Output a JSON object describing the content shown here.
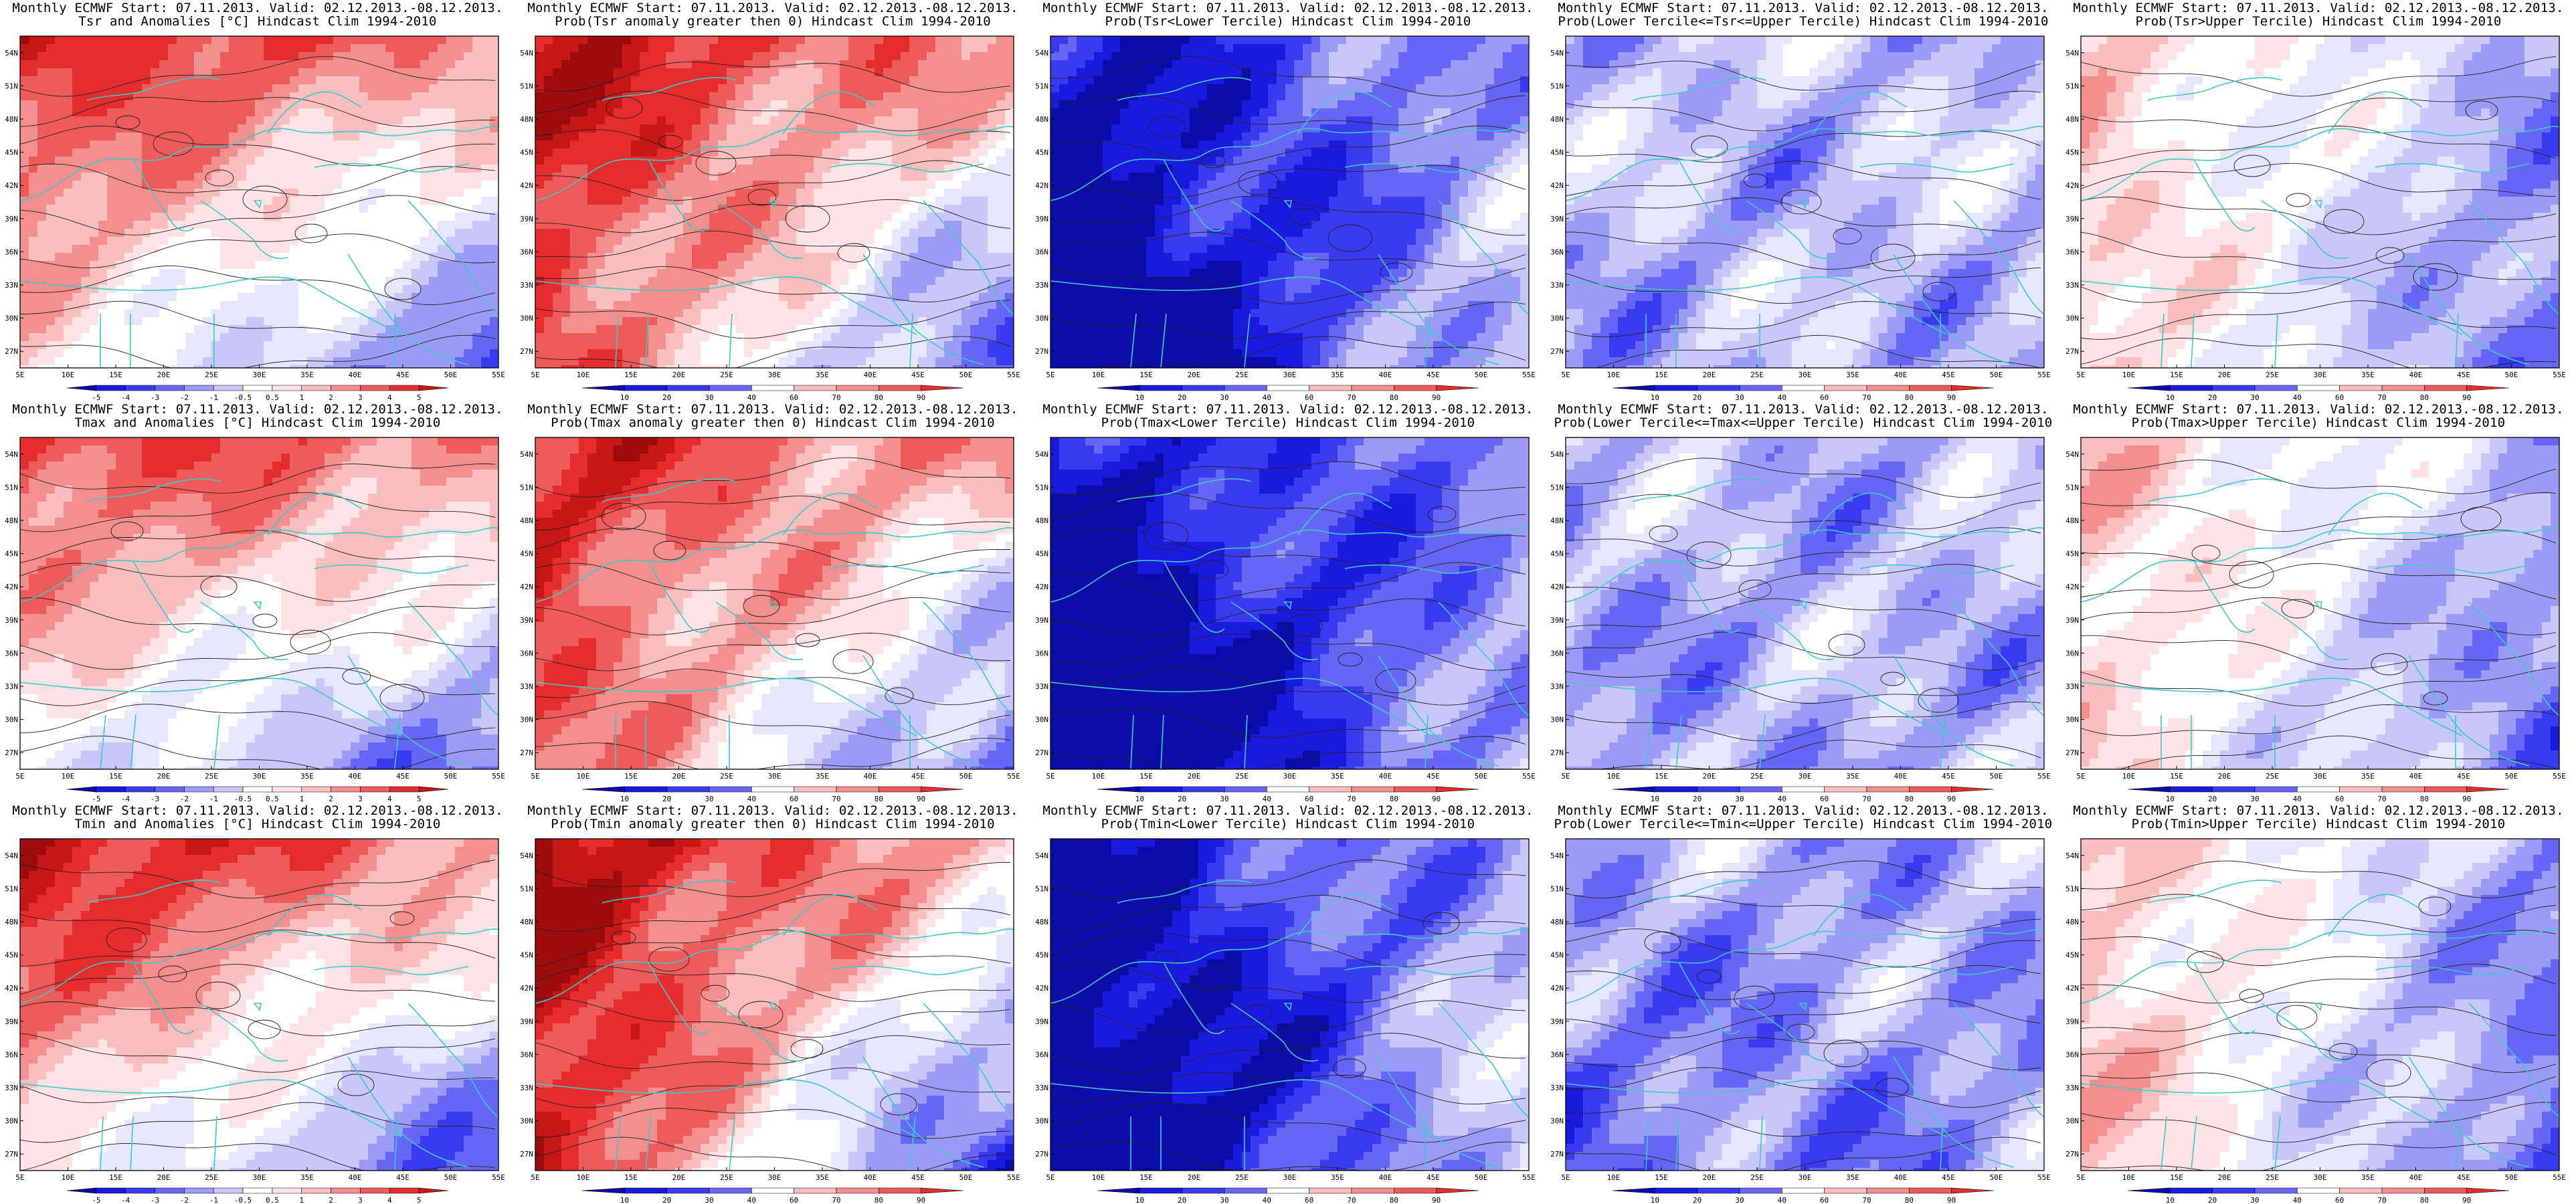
{
  "colors": {
    "blue_scale": [
      "#0c0ca8",
      "#1a1add",
      "#3a3af0",
      "#6767f5",
      "#9c9cf7",
      "#c7c7fa",
      "#e6e6fc"
    ],
    "red_scale": [
      "#fde3e3",
      "#fabebe",
      "#f48f8f",
      "#ee5b5b",
      "#e52d2d",
      "#c71818",
      "#9c0c0c"
    ],
    "coast": "#3ec9c9",
    "contour": "#222222"
  },
  "chart_data": [
    {
      "type": "heatmap",
      "variable": "Tsr",
      "kind": "anom",
      "line1": "Monthly ECMWF Start: 07.11.2013. Valid: 02.12.2013.-08.12.2013.",
      "line2": "Tsr and Anomalies [°C] Hindcast Clim 1994-2010",
      "colorbar_ticks": [
        "-5",
        "-4",
        "-3",
        "-2",
        "-1",
        "-0.5",
        "0.5",
        "1",
        "2",
        "3",
        "4",
        "5"
      ],
      "x_ticks": [
        "5E",
        "10E",
        "15E",
        "20E",
        "25E",
        "30E",
        "35E",
        "40E",
        "45E",
        "50E",
        "55E"
      ],
      "y_ticks": [
        "27N",
        "30N",
        "33N",
        "36N",
        "39N",
        "42N",
        "45N",
        "48N",
        "51N",
        "54N"
      ],
      "xlim": [
        5,
        55
      ],
      "ylim": [
        25.5,
        55.5
      ],
      "pattern": {
        "base": 0.58,
        "w_lat": 0.5,
        "w_lon": -0.18,
        "w_sw": 0.18,
        "w_noise": 0.22,
        "contrast": 1.0,
        "seed": 1
      }
    },
    {
      "type": "heatmap",
      "variable": "Tsr",
      "kind": "prob",
      "line1": "Monthly ECMWF Start: 07.11.2013. Valid: 02.12.2013.-08.12.2013.",
      "line2": "Prob(Tsr anomaly greater then 0) Hindcast Clim 1994-2010",
      "colorbar_ticks": [
        "10",
        "20",
        "30",
        "40",
        "60",
        "70",
        "80",
        "90"
      ],
      "x_ticks": [
        "5E",
        "10E",
        "15E",
        "20E",
        "25E",
        "30E",
        "35E",
        "40E",
        "45E",
        "50E",
        "55E"
      ],
      "y_ticks": [
        "27N",
        "30N",
        "33N",
        "36N",
        "39N",
        "42N",
        "45N",
        "48N",
        "51N",
        "54N"
      ],
      "xlim": [
        5,
        55
      ],
      "ylim": [
        25.5,
        55.5
      ],
      "pattern": {
        "base": 0.62,
        "w_lat": 0.45,
        "w_lon": -0.2,
        "w_sw": 0.35,
        "w_noise": 0.25,
        "contrast": 1.15,
        "seed": 2
      }
    },
    {
      "type": "heatmap",
      "variable": "Tsr",
      "kind": "prob",
      "line1": "Monthly ECMWF Start: 07.11.2013. Valid: 02.12.2013.-08.12.2013.",
      "line2": "Prob(Tsr<Lower Tercile) Hindcast Clim 1994-2010",
      "colorbar_ticks": [
        "10",
        "20",
        "30",
        "40",
        "60",
        "70",
        "80",
        "90"
      ],
      "x_ticks": [
        "5E",
        "10E",
        "15E",
        "20E",
        "25E",
        "30E",
        "35E",
        "40E",
        "45E",
        "50E",
        "55E"
      ],
      "y_ticks": [
        "27N",
        "30N",
        "33N",
        "36N",
        "39N",
        "42N",
        "45N",
        "48N",
        "51N",
        "54N"
      ],
      "xlim": [
        5,
        55
      ],
      "ylim": [
        25.5,
        55.5
      ],
      "pattern": {
        "base": 0.22,
        "w_lat": -0.1,
        "w_lon": 0.2,
        "w_sw": -0.3,
        "w_noise": 0.25,
        "contrast": 1.2,
        "seed": 3
      }
    },
    {
      "type": "heatmap",
      "variable": "Tsr",
      "kind": "prob",
      "line1": "Monthly ECMWF Start: 07.11.2013. Valid: 02.12.2013.-08.12.2013.",
      "line2": "Prob(Lower Tercile<=Tsr<=Upper Tercile) Hindcast Clim 1994-2010",
      "colorbar_ticks": [
        "10",
        "20",
        "30",
        "40",
        "60",
        "70",
        "80",
        "90"
      ],
      "x_ticks": [
        "5E",
        "10E",
        "15E",
        "20E",
        "25E",
        "30E",
        "35E",
        "40E",
        "45E",
        "50E",
        "55E"
      ],
      "y_ticks": [
        "27N",
        "30N",
        "33N",
        "36N",
        "39N",
        "42N",
        "45N",
        "48N",
        "51N",
        "54N"
      ],
      "xlim": [
        5,
        55
      ],
      "ylim": [
        25.5,
        55.5
      ],
      "pattern": {
        "base": 0.36,
        "w_lat": 0.0,
        "w_lon": 0.0,
        "w_sw": -0.05,
        "w_noise": 0.35,
        "contrast": 1.0,
        "seed": 4
      }
    },
    {
      "type": "heatmap",
      "variable": "Tsr",
      "kind": "prob",
      "line1": "Monthly ECMWF Start: 07.11.2013. Valid: 02.12.2013.-08.12.2013.",
      "line2": "Prob(Tsr>Upper Tercile) Hindcast Clim 1994-2010",
      "colorbar_ticks": [
        "10",
        "20",
        "30",
        "40",
        "60",
        "70",
        "80",
        "90"
      ],
      "x_ticks": [
        "5E",
        "10E",
        "15E",
        "20E",
        "25E",
        "30E",
        "35E",
        "40E",
        "45E",
        "50E",
        "55E"
      ],
      "y_ticks": [
        "27N",
        "30N",
        "33N",
        "36N",
        "39N",
        "42N",
        "45N",
        "48N",
        "51N",
        "54N"
      ],
      "xlim": [
        5,
        55
      ],
      "ylim": [
        25.5,
        55.5
      ],
      "pattern": {
        "base": 0.44,
        "w_lat": 0.1,
        "w_lon": -0.3,
        "w_sw": 0.08,
        "w_noise": 0.25,
        "contrast": 1.0,
        "seed": 5
      }
    },
    {
      "type": "heatmap",
      "variable": "Tmax",
      "kind": "anom",
      "line1": "Monthly ECMWF Start: 07.11.2013. Valid: 02.12.2013.-08.12.2013.",
      "line2": "Tmax and Anomalies [°C] Hindcast Clim 1994-2010",
      "colorbar_ticks": [
        "-5",
        "-4",
        "-3",
        "-2",
        "-1",
        "-0.5",
        "0.5",
        "1",
        "2",
        "3",
        "4",
        "5"
      ],
      "x_ticks": [
        "5E",
        "10E",
        "15E",
        "20E",
        "25E",
        "30E",
        "35E",
        "40E",
        "45E",
        "50E",
        "55E"
      ],
      "y_ticks": [
        "27N",
        "30N",
        "33N",
        "36N",
        "39N",
        "42N",
        "45N",
        "48N",
        "51N",
        "54N"
      ],
      "xlim": [
        5,
        55
      ],
      "ylim": [
        25.5,
        55.5
      ],
      "pattern": {
        "base": 0.56,
        "w_lat": 0.5,
        "w_lon": -0.12,
        "w_sw": 0.15,
        "w_noise": 0.22,
        "contrast": 1.0,
        "seed": 6
      }
    },
    {
      "type": "heatmap",
      "variable": "Tmax",
      "kind": "prob",
      "line1": "Monthly ECMWF Start: 07.11.2013. Valid: 02.12.2013.-08.12.2013.",
      "line2": "Prob(Tmax anomaly greater then 0) Hindcast Clim 1994-2010",
      "colorbar_ticks": [
        "10",
        "20",
        "30",
        "40",
        "60",
        "70",
        "80",
        "90"
      ],
      "x_ticks": [
        "5E",
        "10E",
        "15E",
        "20E",
        "25E",
        "30E",
        "35E",
        "40E",
        "45E",
        "50E",
        "55E"
      ],
      "y_ticks": [
        "27N",
        "30N",
        "33N",
        "36N",
        "39N",
        "42N",
        "45N",
        "48N",
        "51N",
        "54N"
      ],
      "xlim": [
        5,
        55
      ],
      "ylim": [
        25.5,
        55.5
      ],
      "pattern": {
        "base": 0.6,
        "w_lat": 0.42,
        "w_lon": -0.18,
        "w_sw": 0.35,
        "w_noise": 0.25,
        "contrast": 1.15,
        "seed": 7
      }
    },
    {
      "type": "heatmap",
      "variable": "Tmax",
      "kind": "prob",
      "line1": "Monthly ECMWF Start: 07.11.2013. Valid: 02.12.2013.-08.12.2013.",
      "line2": "Prob(Tmax<Lower Tercile) Hindcast Clim 1994-2010",
      "colorbar_ticks": [
        "10",
        "20",
        "30",
        "40",
        "60",
        "70",
        "80",
        "90"
      ],
      "x_ticks": [
        "5E",
        "10E",
        "15E",
        "20E",
        "25E",
        "30E",
        "35E",
        "40E",
        "45E",
        "50E",
        "55E"
      ],
      "y_ticks": [
        "27N",
        "30N",
        "33N",
        "36N",
        "39N",
        "42N",
        "45N",
        "48N",
        "51N",
        "54N"
      ],
      "xlim": [
        5,
        55
      ],
      "ylim": [
        25.5,
        55.5
      ],
      "pattern": {
        "base": 0.2,
        "w_lat": -0.08,
        "w_lon": 0.15,
        "w_sw": -0.3,
        "w_noise": 0.25,
        "contrast": 1.2,
        "seed": 8
      }
    },
    {
      "type": "heatmap",
      "variable": "Tmax",
      "kind": "prob",
      "line1": "Monthly ECMWF Start: 07.11.2013. Valid: 02.12.2013.-08.12.2013.",
      "line2": "Prob(Lower Tercile<=Tmax<=Upper Tercile) Hindcast Clim 1994-2010",
      "colorbar_ticks": [
        "10",
        "20",
        "30",
        "40",
        "60",
        "70",
        "80",
        "90"
      ],
      "x_ticks": [
        "5E",
        "10E",
        "15E",
        "20E",
        "25E",
        "30E",
        "35E",
        "40E",
        "45E",
        "50E",
        "55E"
      ],
      "y_ticks": [
        "27N",
        "30N",
        "33N",
        "36N",
        "39N",
        "42N",
        "45N",
        "48N",
        "51N",
        "54N"
      ],
      "xlim": [
        5,
        55
      ],
      "ylim": [
        25.5,
        55.5
      ],
      "pattern": {
        "base": 0.34,
        "w_lat": 0.0,
        "w_lon": 0.0,
        "w_sw": -0.05,
        "w_noise": 0.35,
        "contrast": 1.0,
        "seed": 9
      }
    },
    {
      "type": "heatmap",
      "variable": "Tmax",
      "kind": "prob",
      "line1": "Monthly ECMWF Start: 07.11.2013. Valid: 02.12.2013.-08.12.2013.",
      "line2": "Prob(Tmax>Upper Tercile) Hindcast Clim 1994-2010",
      "colorbar_ticks": [
        "10",
        "20",
        "30",
        "40",
        "60",
        "70",
        "80",
        "90"
      ],
      "x_ticks": [
        "5E",
        "10E",
        "15E",
        "20E",
        "25E",
        "30E",
        "35E",
        "40E",
        "45E",
        "50E",
        "55E"
      ],
      "y_ticks": [
        "27N",
        "30N",
        "33N",
        "36N",
        "39N",
        "42N",
        "45N",
        "48N",
        "51N",
        "54N"
      ],
      "xlim": [
        5,
        55
      ],
      "ylim": [
        25.5,
        55.5
      ],
      "pattern": {
        "base": 0.44,
        "w_lat": 0.12,
        "w_lon": -0.3,
        "w_sw": 0.06,
        "w_noise": 0.25,
        "contrast": 1.0,
        "seed": 10
      }
    },
    {
      "type": "heatmap",
      "variable": "Tmin",
      "kind": "anom",
      "line1": "Monthly ECMWF Start: 07.11.2013. Valid: 02.12.2013.-08.12.2013.",
      "line2": "Tmin and Anomalies [°C] Hindcast Clim 1994-2010",
      "colorbar_ticks": [
        "-5",
        "-4",
        "-3",
        "-2",
        "-1",
        "-0.5",
        "0.5",
        "1",
        "2",
        "3",
        "4",
        "5"
      ],
      "x_ticks": [
        "5E",
        "10E",
        "15E",
        "20E",
        "25E",
        "30E",
        "35E",
        "40E",
        "45E",
        "50E",
        "55E"
      ],
      "y_ticks": [
        "27N",
        "30N",
        "33N",
        "36N",
        "39N",
        "42N",
        "45N",
        "48N",
        "51N",
        "54N"
      ],
      "xlim": [
        5,
        55
      ],
      "ylim": [
        25.5,
        55.5
      ],
      "pattern": {
        "base": 0.58,
        "w_lat": 0.5,
        "w_lon": -0.25,
        "w_sw": 0.12,
        "w_noise": 0.22,
        "contrast": 1.0,
        "seed": 11
      }
    },
    {
      "type": "heatmap",
      "variable": "Tmin",
      "kind": "prob",
      "line1": "Monthly ECMWF Start: 07.11.2013. Valid: 02.12.2013.-08.12.2013.",
      "line2": "Prob(Tmin anomaly greater then 0) Hindcast Clim 1994-2010",
      "colorbar_ticks": [
        "10",
        "20",
        "30",
        "40",
        "60",
        "70",
        "80",
        "90"
      ],
      "x_ticks": [
        "5E",
        "10E",
        "15E",
        "20E",
        "25E",
        "30E",
        "35E",
        "40E",
        "45E",
        "50E",
        "55E"
      ],
      "y_ticks": [
        "27N",
        "30N",
        "33N",
        "36N",
        "39N",
        "42N",
        "45N",
        "48N",
        "51N",
        "54N"
      ],
      "xlim": [
        5,
        55
      ],
      "ylim": [
        25.5,
        55.5
      ],
      "pattern": {
        "base": 0.62,
        "w_lat": 0.45,
        "w_lon": -0.3,
        "w_sw": 0.38,
        "w_noise": 0.25,
        "contrast": 1.15,
        "seed": 12
      }
    },
    {
      "type": "heatmap",
      "variable": "Tmin",
      "kind": "prob",
      "line1": "Monthly ECMWF Start: 07.11.2013. Valid: 02.12.2013.-08.12.2013.",
      "line2": "Prob(Tmin<Lower Tercile) Hindcast Clim 1994-2010",
      "colorbar_ticks": [
        "10",
        "20",
        "30",
        "40",
        "60",
        "70",
        "80",
        "90"
      ],
      "x_ticks": [
        "5E",
        "10E",
        "15E",
        "20E",
        "25E",
        "30E",
        "35E",
        "40E",
        "45E",
        "50E",
        "55E"
      ],
      "y_ticks": [
        "27N",
        "30N",
        "33N",
        "36N",
        "39N",
        "42N",
        "45N",
        "48N",
        "51N",
        "54N"
      ],
      "xlim": [
        5,
        55
      ],
      "ylim": [
        25.5,
        55.5
      ],
      "pattern": {
        "base": 0.22,
        "w_lat": -0.1,
        "w_lon": 0.25,
        "w_sw": -0.3,
        "w_noise": 0.25,
        "contrast": 1.2,
        "seed": 13
      }
    },
    {
      "type": "heatmap",
      "variable": "Tmin",
      "kind": "prob",
      "line1": "Monthly ECMWF Start: 07.11.2013. Valid: 02.12.2013.-08.12.2013.",
      "line2": "Prob(Lower Tercile<=Tmin<=Upper Tercile) Hindcast Clim 1994-2010",
      "colorbar_ticks": [
        "10",
        "20",
        "30",
        "40",
        "60",
        "70",
        "80",
        "90"
      ],
      "x_ticks": [
        "5E",
        "10E",
        "15E",
        "20E",
        "25E",
        "30E",
        "35E",
        "40E",
        "45E",
        "50E",
        "55E"
      ],
      "y_ticks": [
        "27N",
        "30N",
        "33N",
        "36N",
        "39N",
        "42N",
        "45N",
        "48N",
        "51N",
        "54N"
      ],
      "xlim": [
        5,
        55
      ],
      "ylim": [
        25.5,
        55.5
      ],
      "pattern": {
        "base": 0.3,
        "w_lat": 0.02,
        "w_lon": 0.0,
        "w_sw": -0.08,
        "w_noise": 0.35,
        "contrast": 1.0,
        "seed": 14
      }
    },
    {
      "type": "heatmap",
      "variable": "Tmin",
      "kind": "prob",
      "line1": "Monthly ECMWF Start: 07.11.2013. Valid: 02.12.2013.-08.12.2013.",
      "line2": "Prob(Tmin>Upper Tercile) Hindcast Clim 1994-2010",
      "colorbar_ticks": [
        "10",
        "20",
        "30",
        "40",
        "60",
        "70",
        "80",
        "90"
      ],
      "x_ticks": [
        "5E",
        "10E",
        "15E",
        "20E",
        "25E",
        "30E",
        "35E",
        "40E",
        "45E",
        "50E",
        "55E"
      ],
      "y_ticks": [
        "27N",
        "30N",
        "33N",
        "36N",
        "39N",
        "42N",
        "45N",
        "48N",
        "51N",
        "54N"
      ],
      "xlim": [
        5,
        55
      ],
      "ylim": [
        25.5,
        55.5
      ],
      "pattern": {
        "base": 0.44,
        "w_lat": 0.1,
        "w_lon": -0.35,
        "w_sw": 0.08,
        "w_noise": 0.25,
        "contrast": 1.0,
        "seed": 15
      }
    }
  ]
}
